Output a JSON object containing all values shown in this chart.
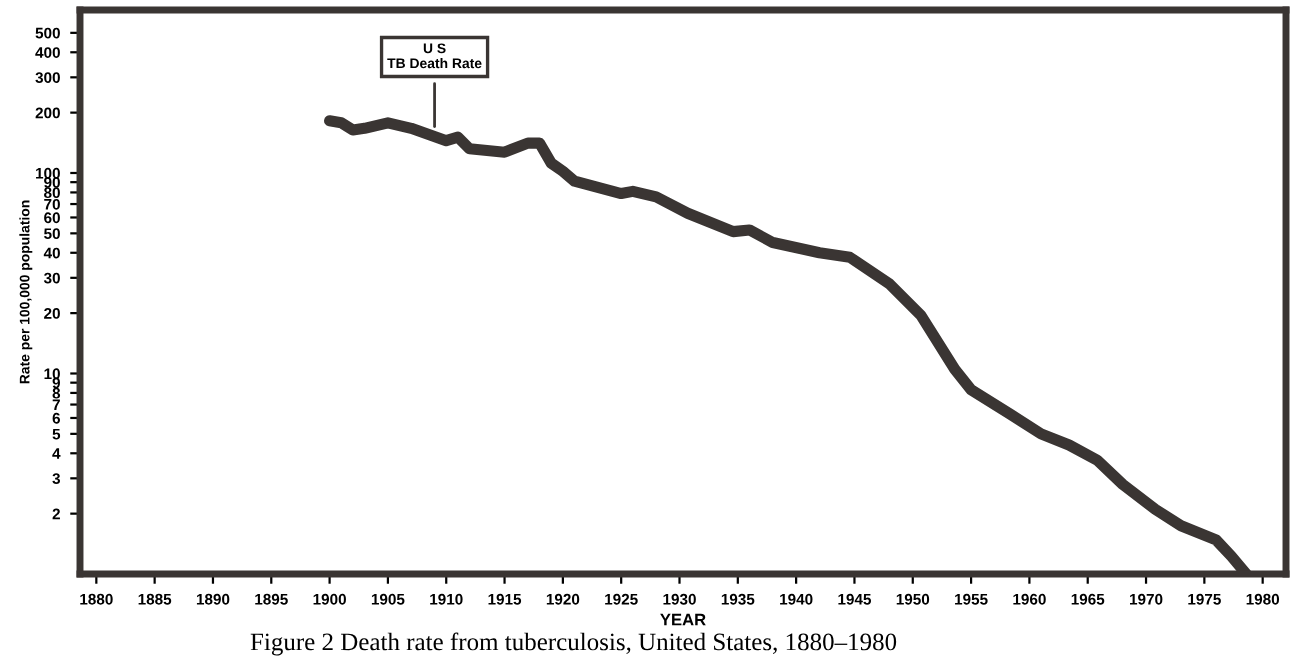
{
  "chart_data": {
    "type": "line",
    "xlabel": "YEAR",
    "ylabel": "Rate per 100,000 population",
    "annotations": [
      {
        "text": "U S\nTB Death Rate",
        "x": 1909,
        "y": 160
      },
      "Figure 2 Death rate from tuberculosis, United States, 1880–1980"
    ],
    "series": [
      {
        "color": "#3a3533",
        "x": [
          1900,
          1901,
          1902,
          1903,
          1905,
          1907,
          1910,
          1911,
          1912,
          1915,
          1917,
          1918,
          1919,
          1920,
          1921,
          1925,
          1926,
          1928,
          1930.7,
          1934.6,
          1936,
          1938,
          1942,
          1944.6,
          1948,
          1950.7,
          1953.6,
          1955,
          1958.3,
          1961,
          1963.4,
          1965.8,
          1968,
          1970.8,
          1973,
          1976,
          1977.3,
          1978.6
        ],
        "values": [
          182,
          178,
          164,
          167,
          178,
          167,
          145,
          151,
          132,
          127,
          141,
          141,
          112,
          102,
          91,
          79,
          81,
          76,
          63,
          51,
          52,
          45,
          40,
          38,
          28,
          19.5,
          10.5,
          8.3,
          6.3,
          5.0,
          4.4,
          3.7,
          2.8,
          2.1,
          1.74,
          1.48,
          1.23,
          1.0
        ]
      }
    ],
    "log": "y",
    "grid": false,
    "legend": false,
    "marker": "none",
    "line_style": "solid",
    "xlim": [
      1878.6,
      1982
    ],
    "xticks": [
      1880,
      1885,
      1890,
      1895,
      1900,
      1905,
      1910,
      1915,
      1920,
      1925,
      1930,
      1935,
      1940,
      1945,
      1950,
      1955,
      1960,
      1965,
      1970,
      1975,
      1980
    ],
    "ylim": [
      1,
      650
    ],
    "yticks": [
      2,
      3,
      4,
      5,
      6,
      7,
      8,
      9,
      10,
      20,
      30,
      40,
      50,
      60,
      70,
      80,
      90,
      100,
      200,
      300,
      400,
      500
    ]
  }
}
